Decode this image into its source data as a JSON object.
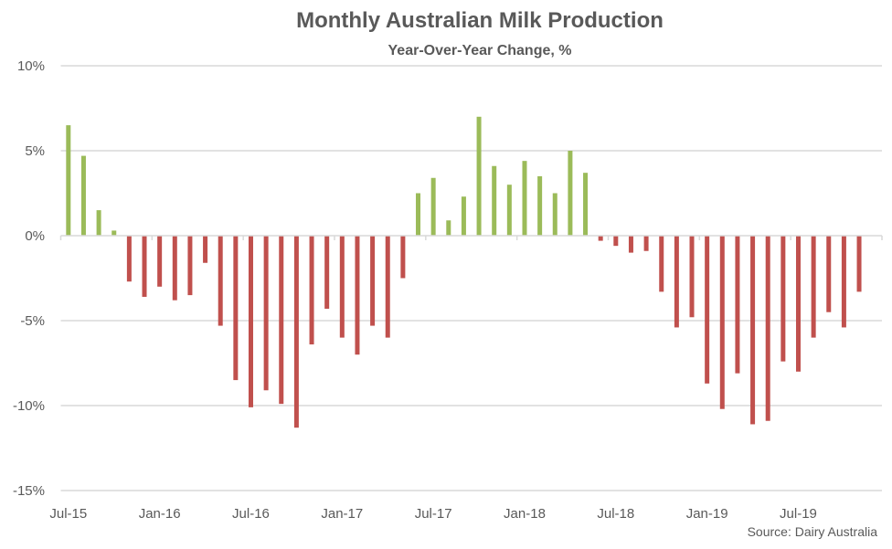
{
  "chart_data": {
    "type": "bar",
    "title": "Monthly Australian Milk Production",
    "subtitle": "Year-Over-Year Change, %",
    "source": "Source: Dairy Australia",
    "xlabel": "",
    "ylabel": "",
    "ylim": [
      -15,
      10
    ],
    "yticks": [
      10,
      5,
      0,
      -5,
      -10,
      -15
    ],
    "ytick_labels": [
      "10%",
      "5%",
      "0%",
      "-5%",
      "-10%",
      "-15%"
    ],
    "grid": true,
    "legend": "none",
    "colors": {
      "positive": "#9BBB59",
      "negative": "#C0504D",
      "grid": "#D9D9D9",
      "text": "#595959"
    },
    "xtick_labels": [
      "Jul-15",
      "Jan-16",
      "Jul-16",
      "Jan-17",
      "Jul-17",
      "Jan-18",
      "Jul-18",
      "Jan-19",
      "Jul-19"
    ],
    "categories": [
      "Jul-15",
      "Aug-15",
      "Sep-15",
      "Oct-15",
      "Nov-15",
      "Dec-15",
      "Jan-16",
      "Feb-16",
      "Mar-16",
      "Apr-16",
      "May-16",
      "Jun-16",
      "Jul-16",
      "Aug-16",
      "Sep-16",
      "Oct-16",
      "Nov-16",
      "Dec-16",
      "Jan-17",
      "Feb-17",
      "Mar-17",
      "Apr-17",
      "May-17",
      "Jun-17",
      "Jul-17",
      "Aug-17",
      "Sep-17",
      "Oct-17",
      "Nov-17",
      "Dec-17",
      "Jan-18",
      "Feb-18",
      "Mar-18",
      "Apr-18",
      "May-18",
      "Jun-18",
      "Jul-18",
      "Aug-18",
      "Sep-18",
      "Oct-18",
      "Nov-18",
      "Dec-18",
      "Jan-19",
      "Feb-19",
      "Mar-19",
      "Apr-19",
      "May-19",
      "Jun-19",
      "Jul-19",
      "Aug-19",
      "Sep-19",
      "Oct-19",
      "Nov-19",
      "Dec-19"
    ],
    "values": [
      6.5,
      4.7,
      1.5,
      0.3,
      -2.7,
      -3.6,
      -3.0,
      -3.8,
      -3.5,
      -1.6,
      -5.3,
      -8.5,
      -10.1,
      -9.1,
      -9.9,
      -11.3,
      -6.4,
      -4.3,
      -6.0,
      -7.0,
      -5.3,
      -6.0,
      -2.5,
      2.5,
      3.4,
      0.9,
      2.3,
      7.0,
      4.1,
      3.0,
      4.4,
      3.5,
      2.5,
      5.0,
      3.7,
      -0.3,
      -0.6,
      -1.0,
      -0.9,
      -3.3,
      -5.4,
      -4.8,
      -8.7,
      -10.2,
      -8.1,
      -11.1,
      -10.9,
      -7.4,
      -8.0,
      -6.0,
      -4.5,
      -5.4,
      -3.3,
      null
    ]
  }
}
